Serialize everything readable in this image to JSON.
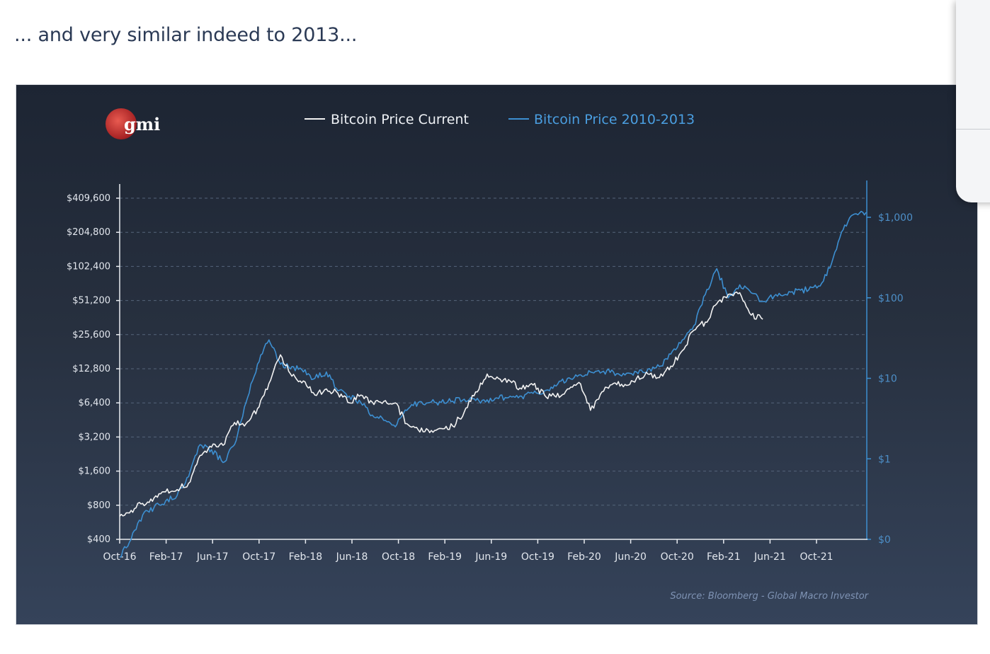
{
  "caption": "... and very similar indeed to 2013...",
  "logo": {
    "text": "gmi",
    "color": "#c8282c"
  },
  "colors": {
    "current": "#f2f2f2",
    "history": "#3d8fd1",
    "axis": "#a9b6c8",
    "grid": "#55647a"
  },
  "chart_data": {
    "type": "line",
    "x_tick_labels": [
      "Oct-16",
      "Feb-17",
      "Jun-17",
      "Oct-17",
      "Feb-18",
      "Jun-18",
      "Oct-18",
      "Feb-19",
      "Jun-19",
      "Oct-19",
      "Feb-20",
      "Jun-20",
      "Oct-20",
      "Feb-21",
      "Jun-21",
      "Oct-21"
    ],
    "x_range": [
      "2016-10",
      "2022-03"
    ],
    "left_axis": {
      "scale": "log",
      "ticks": [
        400,
        800,
        1600,
        3200,
        6400,
        12800,
        25600,
        51200,
        102400,
        204800,
        409600
      ],
      "labels": [
        "$400",
        "$800",
        "$1,600",
        "$3,200",
        "$6,400",
        "$12,800",
        "$25,600",
        "$51,200",
        "$102,400",
        "$204,800",
        "$409,600"
      ]
    },
    "right_axis": {
      "scale": "log",
      "ticks": [
        0.1,
        1,
        10,
        100,
        1000
      ],
      "labels": [
        "$0",
        "$1",
        "$10",
        "$100",
        "$1,000"
      ]
    },
    "series": [
      {
        "name": "Bitcoin Price Current",
        "axis": "left",
        "points": [
          [
            "2016-10",
            640
          ],
          [
            "2016-11",
            720
          ],
          [
            "2016-12",
            830
          ],
          [
            "2017-01",
            930
          ],
          [
            "2017-02",
            1050
          ],
          [
            "2017-03",
            1100
          ],
          [
            "2017-04",
            1250
          ],
          [
            "2017-05",
            2200
          ],
          [
            "2017-06",
            2600
          ],
          [
            "2017-07",
            2700
          ],
          [
            "2017-08",
            4300
          ],
          [
            "2017-09",
            4200
          ],
          [
            "2017-10",
            5700
          ],
          [
            "2017-11",
            9500
          ],
          [
            "2017-12",
            17000
          ],
          [
            "2018-01",
            11000
          ],
          [
            "2018-02",
            10000
          ],
          [
            "2018-03",
            7500
          ],
          [
            "2018-04",
            8500
          ],
          [
            "2018-05",
            7800
          ],
          [
            "2018-06",
            6400
          ],
          [
            "2018-07",
            7500
          ],
          [
            "2018-08",
            6500
          ],
          [
            "2018-09",
            6600
          ],
          [
            "2018-10",
            6400
          ],
          [
            "2018-11",
            4200
          ],
          [
            "2018-12",
            3700
          ],
          [
            "2019-01",
            3500
          ],
          [
            "2019-02",
            3800
          ],
          [
            "2019-03",
            4000
          ],
          [
            "2019-04",
            5300
          ],
          [
            "2019-05",
            8000
          ],
          [
            "2019-06",
            11500
          ],
          [
            "2019-07",
            10500
          ],
          [
            "2019-08",
            10000
          ],
          [
            "2019-09",
            8500
          ],
          [
            "2019-10",
            9200
          ],
          [
            "2019-11",
            7500
          ],
          [
            "2019-12",
            7200
          ],
          [
            "2020-01",
            8500
          ],
          [
            "2020-02",
            9700
          ],
          [
            "2020-03",
            5500
          ],
          [
            "2020-04",
            8000
          ],
          [
            "2020-05",
            9500
          ],
          [
            "2020-06",
            9300
          ],
          [
            "2020-07",
            10500
          ],
          [
            "2020-08",
            11500
          ],
          [
            "2020-09",
            10700
          ],
          [
            "2020-10",
            13500
          ],
          [
            "2020-11",
            18500
          ],
          [
            "2020-12",
            28000
          ],
          [
            "2021-01",
            33000
          ],
          [
            "2021-02",
            48000
          ],
          [
            "2021-03",
            58000
          ],
          [
            "2021-04",
            60000
          ],
          [
            "2021-05",
            38000
          ],
          [
            "2021-06",
            35000
          ]
        ]
      },
      {
        "name": "Bitcoin Price 2010-2013",
        "axis": "right",
        "points": [
          [
            "2016-10",
            0.06
          ],
          [
            "2016-11",
            0.1
          ],
          [
            "2016-12",
            0.2
          ],
          [
            "2017-01",
            0.25
          ],
          [
            "2017-02",
            0.3
          ],
          [
            "2017-03",
            0.35
          ],
          [
            "2017-04",
            0.6
          ],
          [
            "2017-05",
            1.5
          ],
          [
            "2017-06",
            1.3
          ],
          [
            "2017-07",
            0.9
          ],
          [
            "2017-08",
            1.5
          ],
          [
            "2017-09",
            5
          ],
          [
            "2017-10",
            15
          ],
          [
            "2017-11",
            30
          ],
          [
            "2017-12",
            15
          ],
          [
            "2018-01",
            14
          ],
          [
            "2018-02",
            12
          ],
          [
            "2018-03",
            10
          ],
          [
            "2018-04",
            12
          ],
          [
            "2018-05",
            7
          ],
          [
            "2018-06",
            6
          ],
          [
            "2018-07",
            5
          ],
          [
            "2018-08",
            3.5
          ],
          [
            "2018-09",
            3
          ],
          [
            "2018-10",
            2.5
          ],
          [
            "2018-11",
            4
          ],
          [
            "2018-12",
            5
          ],
          [
            "2019-01",
            5
          ],
          [
            "2019-02",
            5
          ],
          [
            "2019-03",
            5.2
          ],
          [
            "2019-04",
            5.5
          ],
          [
            "2019-05",
            5.3
          ],
          [
            "2019-06",
            5.4
          ],
          [
            "2019-07",
            5.6
          ],
          [
            "2019-08",
            6
          ],
          [
            "2019-09",
            6
          ],
          [
            "2019-10",
            6.5
          ],
          [
            "2019-11",
            7
          ],
          [
            "2019-12",
            8
          ],
          [
            "2020-01",
            10
          ],
          [
            "2020-02",
            11
          ],
          [
            "2020-03",
            12
          ],
          [
            "2020-04",
            12
          ],
          [
            "2020-05",
            12
          ],
          [
            "2020-06",
            11
          ],
          [
            "2020-07",
            12
          ],
          [
            "2020-08",
            13
          ],
          [
            "2020-09",
            14
          ],
          [
            "2020-10",
            20
          ],
          [
            "2020-11",
            30
          ],
          [
            "2020-12",
            45
          ],
          [
            "2021-01",
            110
          ],
          [
            "2021-02",
            230
          ],
          [
            "2021-03",
            100
          ],
          [
            "2021-04",
            145
          ],
          [
            "2021-05",
            115
          ],
          [
            "2021-06",
            90
          ],
          [
            "2021-07",
            105
          ],
          [
            "2021-08",
            110
          ],
          [
            "2021-09",
            125
          ],
          [
            "2021-10",
            125
          ],
          [
            "2021-11",
            140
          ],
          [
            "2021-12",
            270
          ],
          [
            "2022-01",
            700
          ],
          [
            "2022-02",
            1100
          ],
          [
            "2022-03",
            1150
          ]
        ]
      }
    ],
    "source": "Source: Bloomberg - Global Macro Investor",
    "grid": "dashed horizontal",
    "legend_position": "top-center"
  }
}
